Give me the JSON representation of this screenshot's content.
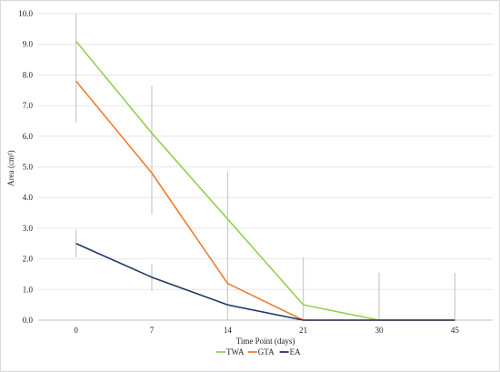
{
  "chart_data": {
    "type": "line",
    "title": "",
    "xlabel": "Time Point (days)",
    "ylabel": "Area (cm²)",
    "ylim": [
      0,
      10
    ],
    "yticks": [
      0,
      1,
      2,
      3,
      4,
      5,
      6,
      7,
      8,
      9,
      10
    ],
    "ytick_labels": [
      "0.0",
      "1.0",
      "2.0",
      "3.0",
      "4.0",
      "5.0",
      "6.0",
      "7.0",
      "8.0",
      "9.0",
      "10.0"
    ],
    "categories": [
      "0",
      "7",
      "14",
      "21",
      "30",
      "45"
    ],
    "grid": "horizontal",
    "legend_position": "bottom",
    "series": [
      {
        "name": "TWA",
        "color": "#92d050",
        "values": [
          9.1,
          6.1,
          3.3,
          0.5,
          0.0,
          0.0
        ]
      },
      {
        "name": "GTA",
        "color": "#ed7d31",
        "values": [
          7.8,
          4.8,
          1.2,
          0.0,
          0.0,
          0.0
        ]
      },
      {
        "name": "EA",
        "color": "#1f3864",
        "values": [
          2.5,
          1.4,
          0.5,
          0.0,
          0.0,
          0.0
        ]
      }
    ],
    "error_bars": {
      "color": "#bfbfbf",
      "ranges": [
        {
          "low": 6.45,
          "high": 10.0
        },
        {
          "low": 3.45,
          "high": 7.65
        },
        {
          "low": 0.0,
          "high": 4.85
        },
        {
          "low": 0.0,
          "high": 2.05
        },
        {
          "low": 0.0,
          "high": 1.55
        },
        {
          "low": 0.0,
          "high": 1.55
        }
      ],
      "ea_ranges": [
        {
          "low": 2.05,
          "high": 2.95
        },
        {
          "low": 0.95,
          "high": 1.85
        }
      ]
    }
  }
}
